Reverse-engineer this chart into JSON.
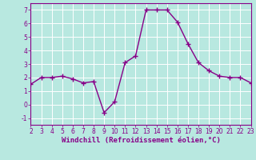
{
  "x": [
    2,
    3,
    4,
    5,
    6,
    7,
    8,
    9,
    10,
    11,
    12,
    13,
    14,
    15,
    16,
    17,
    18,
    19,
    20,
    21,
    22,
    23
  ],
  "y": [
    1.5,
    2.0,
    2.0,
    2.1,
    1.9,
    1.6,
    1.7,
    -0.6,
    0.2,
    3.1,
    3.6,
    7.0,
    7.0,
    7.0,
    6.1,
    4.5,
    3.1,
    2.5,
    2.1,
    2.0,
    2.0,
    1.6
  ],
  "line_color": "#880088",
  "marker": "+",
  "marker_size": 4,
  "marker_lw": 1.0,
  "line_width": 1.0,
  "bg_color": "#b8e8e0",
  "grid_color": "#ffffff",
  "xlabel": "Windchill (Refroidissement éolien,°C)",
  "xlabel_color": "#880088",
  "tick_color": "#880088",
  "spine_color": "#880088",
  "xlim": [
    2,
    23
  ],
  "ylim": [
    -1.5,
    7.5
  ],
  "yticks": [
    -1,
    0,
    1,
    2,
    3,
    4,
    5,
    6,
    7
  ],
  "xticks": [
    2,
    3,
    4,
    5,
    6,
    7,
    8,
    9,
    10,
    11,
    12,
    13,
    14,
    15,
    16,
    17,
    18,
    19,
    20,
    21,
    22,
    23
  ],
  "label_fontsize": 6.5,
  "tick_fontsize": 5.5
}
